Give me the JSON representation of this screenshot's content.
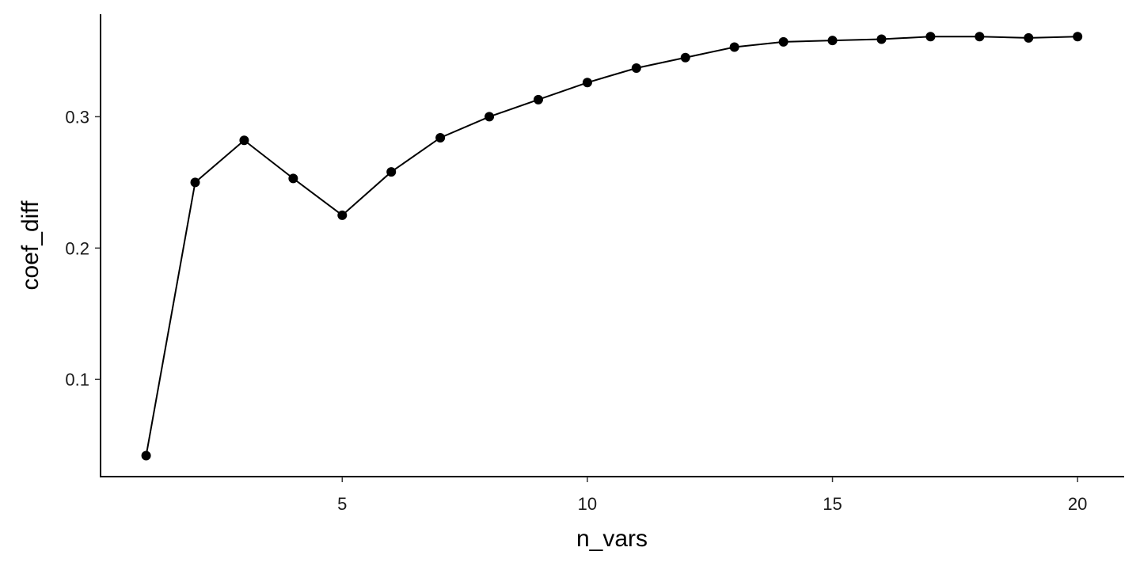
{
  "chart_data": {
    "type": "line",
    "title": "",
    "xlabel": "n_vars",
    "ylabel": "coef_diff",
    "x": [
      1,
      2,
      3,
      4,
      5,
      6,
      7,
      8,
      9,
      10,
      11,
      12,
      13,
      14,
      15,
      16,
      17,
      18,
      19,
      20
    ],
    "series": [
      {
        "values": [
          0.042,
          0.25,
          0.282,
          0.253,
          0.225,
          0.258,
          0.284,
          0.3,
          0.313,
          0.326,
          0.337,
          0.345,
          0.353,
          0.357,
          0.358,
          0.359,
          0.361,
          0.361,
          0.36,
          0.361
        ]
      }
    ],
    "xlim": [
      0.07,
      20.95
    ],
    "ylim": [
      0.026,
      0.378
    ],
    "xticks": [
      5,
      10,
      15,
      20
    ],
    "xtick_labels": [
      "5",
      "10",
      "15",
      "20"
    ],
    "yticks": [
      0.1,
      0.2,
      0.3
    ],
    "ytick_labels": [
      "0.1",
      "0.2",
      "0.3"
    ],
    "grid": false,
    "markers": true,
    "color": "#000000"
  }
}
